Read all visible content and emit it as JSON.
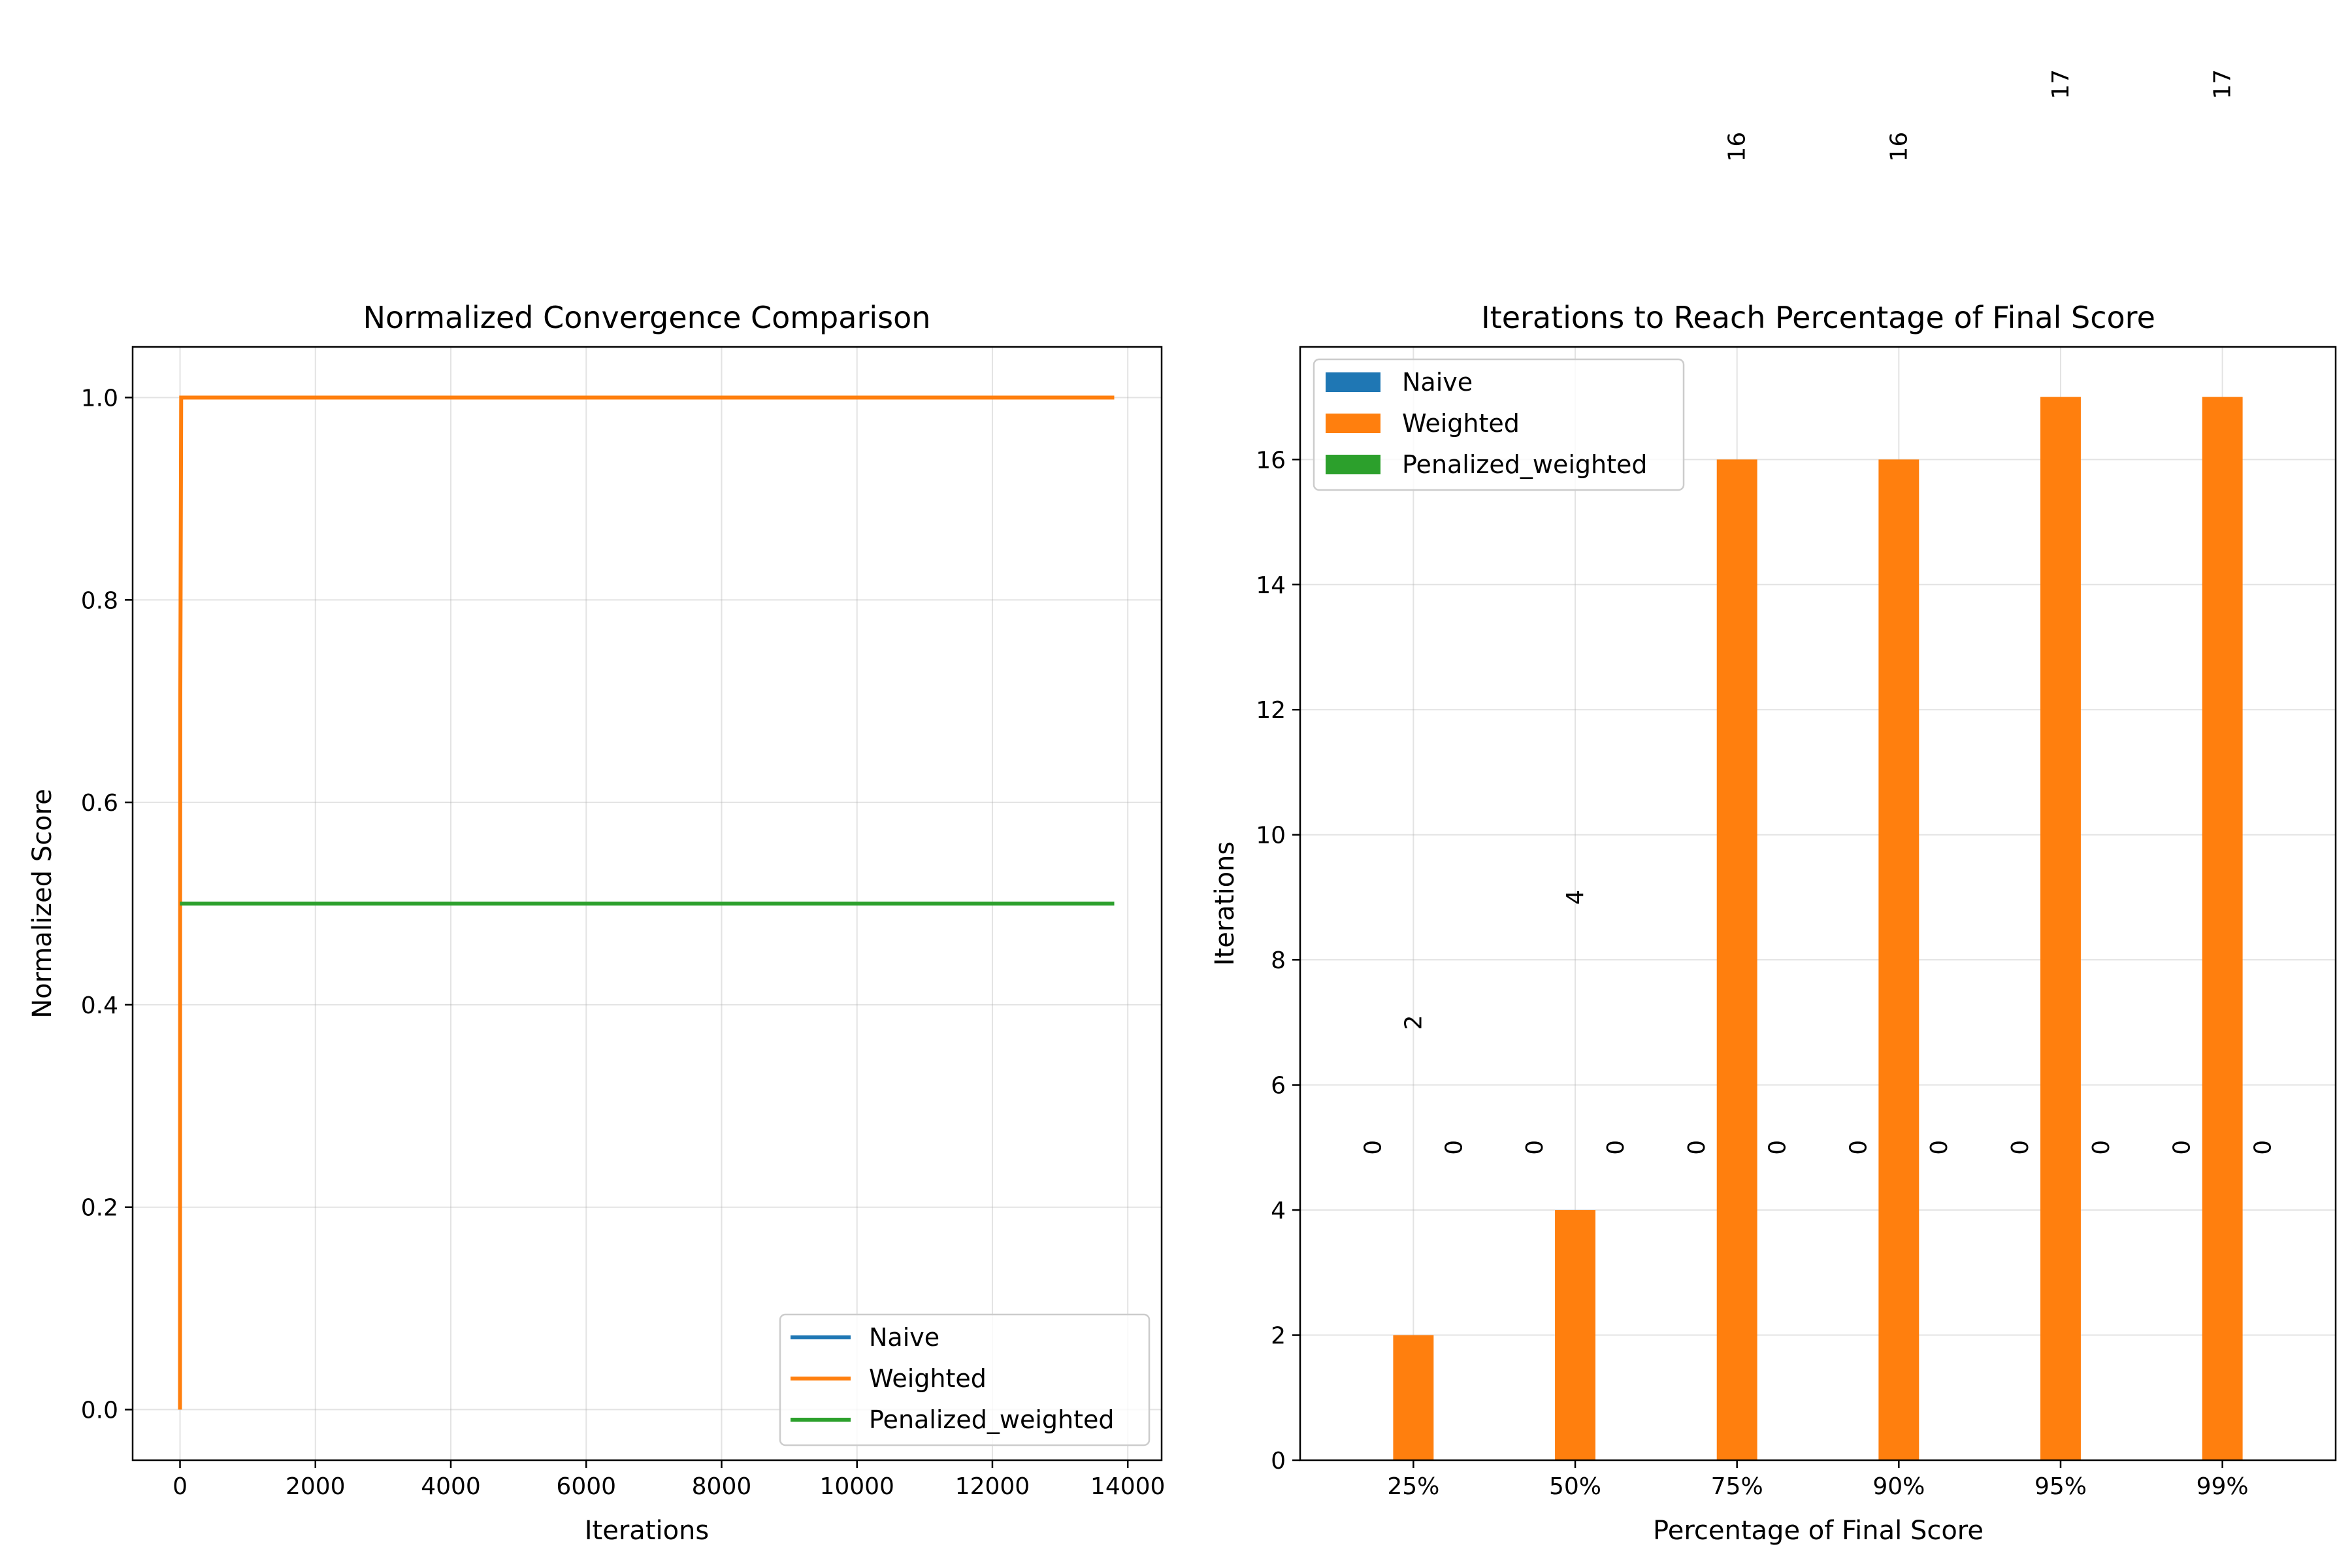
{
  "chart_data": [
    {
      "type": "line",
      "title": "Normalized Convergence Comparison",
      "xlabel": "Iterations",
      "ylabel": "Normalized Score",
      "xlim": [
        -700,
        14500
      ],
      "ylim": [
        -0.05,
        1.05
      ],
      "xticks": [
        0,
        2000,
        4000,
        6000,
        8000,
        10000,
        12000,
        14000
      ],
      "yticks": [
        0.0,
        0.2,
        0.4,
        0.6,
        0.8,
        1.0
      ],
      "xtick_labels": [
        "0",
        "2000",
        "4000",
        "6000",
        "8000",
        "10000",
        "12000",
        "14000"
      ],
      "ytick_labels": [
        "0.0",
        "0.2",
        "0.4",
        "0.6",
        "0.8",
        "1.0"
      ],
      "grid": true,
      "legend_position": "lower right",
      "series": [
        {
          "name": "Naive",
          "color": "#1f77b4",
          "points": [
            [
              0,
              0.5
            ],
            [
              13800,
              0.5
            ]
          ]
        },
        {
          "name": "Weighted",
          "color": "#ff7f0e",
          "points": [
            [
              0,
              0.0
            ],
            [
              2,
              0.5
            ],
            [
              4,
              0.7
            ],
            [
              17,
              1.0
            ],
            [
              13800,
              1.0
            ]
          ]
        },
        {
          "name": "Penalized_weighted",
          "color": "#2ca02c",
          "points": [
            [
              0,
              0.5
            ],
            [
              13800,
              0.5
            ]
          ]
        }
      ]
    },
    {
      "type": "bar",
      "title": "Iterations to Reach Percentage of Final Score",
      "xlabel": "Percentage of Final Score",
      "ylabel": "Iterations",
      "categories": [
        "25%",
        "50%",
        "75%",
        "90%",
        "95%",
        "99%"
      ],
      "ylim": [
        0,
        17.8
      ],
      "yticks": [
        0,
        2,
        4,
        6,
        8,
        10,
        12,
        14,
        16
      ],
      "ytick_labels": [
        "0",
        "2",
        "4",
        "6",
        "8",
        "10",
        "12",
        "14",
        "16"
      ],
      "grid": true,
      "legend_position": "upper left",
      "series": [
        {
          "name": "Naive",
          "color": "#1f77b4",
          "values": [
            0,
            0,
            0,
            0,
            0,
            0
          ],
          "labels": [
            "0",
            "0",
            "0",
            "0",
            "0",
            "0"
          ]
        },
        {
          "name": "Weighted",
          "color": "#ff7f0e",
          "values": [
            2,
            4,
            16,
            16,
            17,
            17
          ],
          "labels": [
            "2",
            "4",
            "16",
            "16",
            "17",
            "17"
          ]
        },
        {
          "name": "Penalized_weighted",
          "color": "#2ca02c",
          "values": [
            0,
            0,
            0,
            0,
            0,
            0
          ],
          "labels": [
            "0",
            "0",
            "0",
            "0",
            "0",
            "0"
          ]
        }
      ]
    }
  ]
}
